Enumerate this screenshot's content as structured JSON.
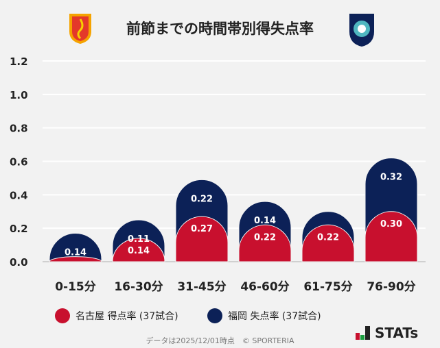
{
  "title": "前節までの時間帯別得失点率",
  "logos": {
    "left": "名古屋 team crest",
    "right": "福岡 team crest",
    "brand": "STATs"
  },
  "colors": {
    "home": "#c8102e",
    "away": "#0c2157",
    "grid": "#ffffff",
    "background": "#f2f2f2"
  },
  "chart_data": {
    "type": "bar",
    "stacked": true,
    "categories": [
      "0-15分",
      "16-30分",
      "31-45分",
      "46-60分",
      "61-75分",
      "76-90分"
    ],
    "series": [
      {
        "name": "名古屋 得点率 (37試合)",
        "values": [
          0.03,
          0.14,
          0.27,
          0.22,
          0.22,
          0.3
        ],
        "labels": [
          "",
          "0.14",
          "0.27",
          "0.22",
          "0.22",
          "0.30"
        ]
      },
      {
        "name": "福岡 失点率 (37試合)",
        "values": [
          0.14,
          0.11,
          0.22,
          0.14,
          0.08,
          0.32
        ],
        "labels": [
          "0.14",
          "0.11",
          "0.22",
          "0.14",
          "",
          "0.32"
        ]
      }
    ],
    "yticks": [
      "0.0",
      "0.2",
      "0.4",
      "0.6",
      "0.8",
      "1.0",
      "1.2"
    ],
    "ylim": [
      0,
      1.2
    ],
    "grid": true,
    "legend": "bottom"
  },
  "footer": "データは2025/12/01時点　© SPORTERIA"
}
